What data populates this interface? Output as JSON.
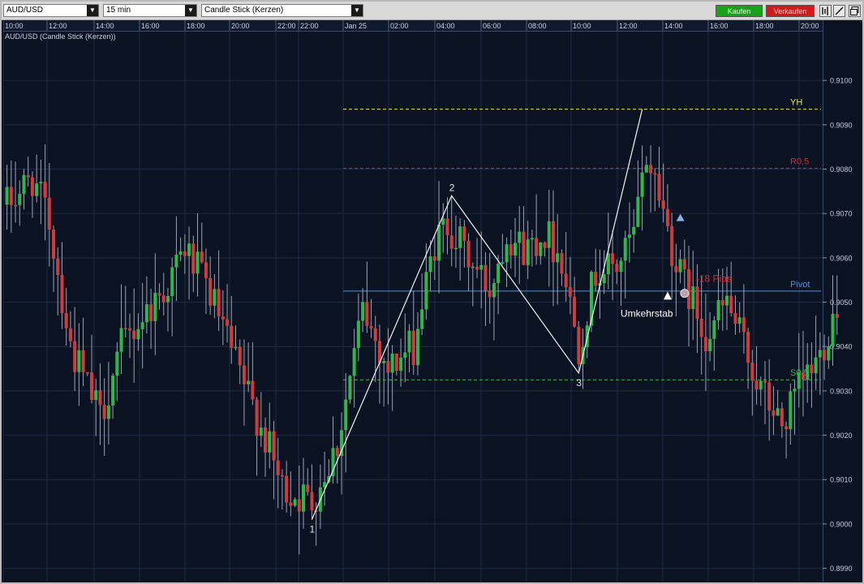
{
  "toolbar": {
    "symbol": "AUD/USD",
    "timeframe": "15 min",
    "chart_style": "Candle Stick (Kerzen)",
    "buy_label": "Kaufen",
    "sell_label": "Verkaufen",
    "icons": [
      "bar-chart-icon",
      "draw-line-icon",
      "detach-window-icon"
    ]
  },
  "chart_caption": "AUD/USD (Candle Stick (Kerzen))",
  "colors": {
    "background": "#0b1222",
    "bull": "#2fb84a",
    "bear": "#d23b3b",
    "grid": "#1e2c45",
    "buy": "#17a317",
    "sell": "#d11a1a"
  },
  "annotations": {
    "points": [
      "1",
      "2",
      "3"
    ],
    "umkehrstab": "Umkehrstab",
    "pips": "-18 Pips"
  },
  "chart_data": {
    "type": "candlestick",
    "title": "AUD/USD (Candle Stick (Kerzen))",
    "x_tick_labels": [
      "10:00",
      "12:00",
      "14:00",
      "16:00",
      "18:00",
      "20:00",
      "22:00",
      "22:00",
      "Jan 25",
      "02:00",
      "04:00",
      "06:00",
      "08:00",
      "10:00",
      "12:00",
      "14:00",
      "16:00",
      "18:00",
      "20:00"
    ],
    "y_tick_labels": [
      "0.9100",
      "0.9090",
      "0.9080",
      "0.9070",
      "0.9060",
      "0.9050",
      "0.9040",
      "0.9030",
      "0.9020",
      "0.9010",
      "0.9000",
      "0.8990"
    ],
    "ylim": [
      0.8987,
      0.9111
    ],
    "grid": true,
    "levels": [
      {
        "name": "YH",
        "value": 0.90935,
        "color": "#e6e62e",
        "style": "dashed"
      },
      {
        "name": "R0,5",
        "value": 0.90802,
        "color": "#d82a2a",
        "style": "dashed"
      },
      {
        "name": "Pivot",
        "value": 0.90525,
        "color": "#5b8fc9",
        "style": "solid"
      },
      {
        "name": "S0,5",
        "value": 0.90325,
        "color": "#2fb84a",
        "style": "dashed"
      }
    ],
    "zigzag": [
      {
        "label": "1",
        "bar": 72,
        "price": 0.9001
      },
      {
        "label": "2",
        "bar": 105,
        "price": 0.9074
      },
      {
        "label": "3",
        "bar": 135,
        "price": 0.9034
      },
      {
        "label": "",
        "bar": 150,
        "price": 0.90935
      }
    ],
    "signals": [
      {
        "label": "Umkehrstab",
        "type": "white-up-triangle",
        "bar": 156,
        "price": 0.90515
      },
      {
        "label": "",
        "type": "blue-up-triangle",
        "bar": 159,
        "price": 0.9069
      },
      {
        "label": "-18 Pips",
        "type": "exit-circle",
        "bar": 160,
        "price": 0.9052
      }
    ],
    "anchors": [
      {
        "bar": 0,
        "price": 0.9072
      },
      {
        "bar": 6,
        "price": 0.9078
      },
      {
        "bar": 10,
        "price": 0.9068
      },
      {
        "bar": 15,
        "price": 0.904
      },
      {
        "bar": 22,
        "price": 0.9024
      },
      {
        "bar": 27,
        "price": 0.904
      },
      {
        "bar": 33,
        "price": 0.9048
      },
      {
        "bar": 38,
        "price": 0.9054
      },
      {
        "bar": 42,
        "price": 0.9062
      },
      {
        "bar": 48,
        "price": 0.9052
      },
      {
        "bar": 54,
        "price": 0.9036
      },
      {
        "bar": 60,
        "price": 0.9022
      },
      {
        "bar": 65,
        "price": 0.9008
      },
      {
        "bar": 72,
        "price": 0.9005
      },
      {
        "bar": 78,
        "price": 0.9018
      },
      {
        "bar": 84,
        "price": 0.9048
      },
      {
        "bar": 90,
        "price": 0.9035
      },
      {
        "bar": 96,
        "price": 0.904
      },
      {
        "bar": 101,
        "price": 0.9063
      },
      {
        "bar": 104,
        "price": 0.9068
      },
      {
        "bar": 110,
        "price": 0.9058
      },
      {
        "bar": 114,
        "price": 0.9053
      },
      {
        "bar": 118,
        "price": 0.9066
      },
      {
        "bar": 122,
        "price": 0.9062
      },
      {
        "bar": 127,
        "price": 0.9066
      },
      {
        "bar": 131,
        "price": 0.906
      },
      {
        "bar": 135,
        "price": 0.904
      },
      {
        "bar": 139,
        "price": 0.9057
      },
      {
        "bar": 144,
        "price": 0.9058
      },
      {
        "bar": 148,
        "price": 0.9065
      },
      {
        "bar": 151,
        "price": 0.9083
      },
      {
        "bar": 154,
        "price": 0.9075
      },
      {
        "bar": 158,
        "price": 0.9058
      },
      {
        "bar": 161,
        "price": 0.9052
      },
      {
        "bar": 165,
        "price": 0.9043
      },
      {
        "bar": 170,
        "price": 0.905
      },
      {
        "bar": 174,
        "price": 0.904
      },
      {
        "bar": 178,
        "price": 0.903
      },
      {
        "bar": 183,
        "price": 0.9022
      },
      {
        "bar": 188,
        "price": 0.9032
      },
      {
        "bar": 192,
        "price": 0.9038
      },
      {
        "bar": 196,
        "price": 0.905
      }
    ]
  }
}
